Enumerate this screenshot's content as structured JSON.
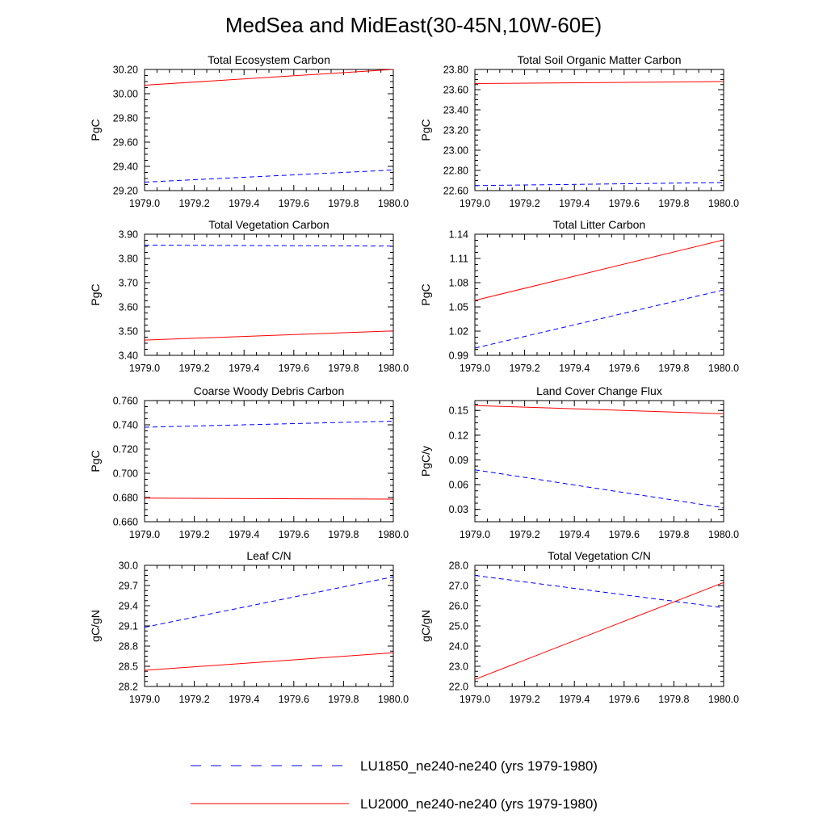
{
  "figure_title": "MedSea and MidEast(30-45N,10W-60E)",
  "colors": {
    "lu1850": "#0000ff",
    "lu2000": "#ff0000"
  },
  "legend": [
    {
      "label": "LU1850_ne240-ne240 (yrs 1979-1980)",
      "style": "dashed",
      "color": "#0000ff"
    },
    {
      "label": "LU2000_ne240-ne240 (yrs 1979-1980)",
      "style": "solid",
      "color": "#ff0000"
    }
  ],
  "chart_data": [
    {
      "type": "line",
      "title": "Total Ecosystem Carbon",
      "ylabel": "PgC",
      "xlim": [
        1979.0,
        1980.0
      ],
      "ylim": [
        29.2,
        30.2
      ],
      "xticks": [
        "1979.0",
        "1979.2",
        "1979.4",
        "1979.6",
        "1979.8",
        "1980.0"
      ],
      "yticks": [
        "29.20",
        "29.40",
        "29.60",
        "29.80",
        "30.00",
        "30.20"
      ],
      "series": [
        {
          "style": "dashed",
          "color": "#0000ff",
          "x": [
            1979.0,
            1980.0
          ],
          "y": [
            29.27,
            29.37
          ]
        },
        {
          "style": "solid",
          "color": "#ff0000",
          "x": [
            1979.0,
            1980.0
          ],
          "y": [
            30.07,
            30.2
          ]
        }
      ]
    },
    {
      "type": "line",
      "title": "Total Soil Organic Matter Carbon",
      "ylabel": "PgC",
      "xlim": [
        1979.0,
        1980.0
      ],
      "ylim": [
        22.6,
        23.8
      ],
      "xticks": [
        "1979.0",
        "1979.2",
        "1979.4",
        "1979.6",
        "1979.8",
        "1980.0"
      ],
      "yticks": [
        "22.60",
        "22.80",
        "23.00",
        "23.20",
        "23.40",
        "23.60",
        "23.80"
      ],
      "series": [
        {
          "style": "dashed",
          "color": "#0000ff",
          "x": [
            1979.0,
            1980.0
          ],
          "y": [
            22.65,
            22.68
          ]
        },
        {
          "style": "solid",
          "color": "#ff0000",
          "x": [
            1979.0,
            1980.0
          ],
          "y": [
            23.66,
            23.68
          ]
        }
      ]
    },
    {
      "type": "line",
      "title": "Total Vegetation Carbon",
      "ylabel": "PgC",
      "xlim": [
        1979.0,
        1980.0
      ],
      "ylim": [
        3.4,
        3.9
      ],
      "xticks": [
        "1979.0",
        "1979.2",
        "1979.4",
        "1979.6",
        "1979.8",
        "1980.0"
      ],
      "yticks": [
        "3.40",
        "3.50",
        "3.60",
        "3.70",
        "3.80",
        "3.90"
      ],
      "series": [
        {
          "style": "dashed",
          "color": "#0000ff",
          "x": [
            1979.0,
            1980.0
          ],
          "y": [
            3.855,
            3.851
          ]
        },
        {
          "style": "solid",
          "color": "#ff0000",
          "x": [
            1979.0,
            1980.0
          ],
          "y": [
            3.463,
            3.501
          ]
        }
      ]
    },
    {
      "type": "line",
      "title": "Total Litter Carbon",
      "ylabel": "PgC",
      "xlim": [
        1979.0,
        1980.0
      ],
      "ylim": [
        0.99,
        1.14
      ],
      "xticks": [
        "1979.0",
        "1979.2",
        "1979.4",
        "1979.6",
        "1979.8",
        "1980.0"
      ],
      "yticks": [
        "0.99",
        "1.02",
        "1.05",
        "1.08",
        "1.11",
        "1.14"
      ],
      "series": [
        {
          "style": "dashed",
          "color": "#0000ff",
          "x": [
            1979.0,
            1980.0
          ],
          "y": [
            0.999,
            1.071
          ]
        },
        {
          "style": "solid",
          "color": "#ff0000",
          "x": [
            1979.0,
            1980.0
          ],
          "y": [
            1.058,
            1.133
          ]
        }
      ]
    },
    {
      "type": "line",
      "title": "Coarse Woody Debris Carbon",
      "ylabel": "PgC",
      "xlim": [
        1979.0,
        1980.0
      ],
      "ylim": [
        0.66,
        0.76
      ],
      "xticks": [
        "1979.0",
        "1979.2",
        "1979.4",
        "1979.6",
        "1979.8",
        "1980.0"
      ],
      "yticks": [
        "0.660",
        "0.680",
        "0.700",
        "0.720",
        "0.740",
        "0.760"
      ],
      "series": [
        {
          "style": "dashed",
          "color": "#0000ff",
          "x": [
            1979.0,
            1980.0
          ],
          "y": [
            0.738,
            0.743
          ]
        },
        {
          "style": "solid",
          "color": "#ff0000",
          "x": [
            1979.0,
            1980.0
          ],
          "y": [
            0.6795,
            0.6787
          ]
        }
      ]
    },
    {
      "type": "line",
      "title": "Land Cover Change Flux",
      "ylabel": "PgC/y",
      "xlim": [
        1979.0,
        1980.0
      ],
      "ylim": [
        0.015,
        0.162
      ],
      "xticks": [
        "1979.0",
        "1979.2",
        "1979.4",
        "1979.6",
        "1979.8",
        "1980.0"
      ],
      "yticks": [
        "0.03",
        "0.06",
        "0.09",
        "0.12",
        "0.15"
      ],
      "ytick_values": [
        0.03,
        0.06,
        0.09,
        0.12,
        0.15
      ],
      "series": [
        {
          "style": "dashed",
          "color": "#0000ff",
          "x": [
            1979.0,
            1980.0
          ],
          "y": [
            0.078,
            0.032
          ]
        },
        {
          "style": "solid",
          "color": "#ff0000",
          "x": [
            1979.0,
            1980.0
          ],
          "y": [
            0.156,
            0.146
          ]
        }
      ]
    },
    {
      "type": "line",
      "title": "Leaf C/N",
      "ylabel": "gC/gN",
      "xlim": [
        1979.0,
        1980.0
      ],
      "ylim": [
        28.2,
        30.0
      ],
      "xticks": [
        "1979.0",
        "1979.2",
        "1979.4",
        "1979.6",
        "1979.8",
        "1980.0"
      ],
      "yticks": [
        "28.2",
        "28.5",
        "28.8",
        "29.1",
        "29.4",
        "29.7",
        "30.0"
      ],
      "series": [
        {
          "style": "dashed",
          "color": "#0000ff",
          "x": [
            1979.0,
            1980.0
          ],
          "y": [
            29.08,
            29.83
          ]
        },
        {
          "style": "solid",
          "color": "#ff0000",
          "x": [
            1979.0,
            1980.0
          ],
          "y": [
            28.44,
            28.7
          ]
        }
      ]
    },
    {
      "type": "line",
      "title": "Total Vegetation C/N",
      "ylabel": "gC/gN",
      "xlim": [
        1979.0,
        1980.0
      ],
      "ylim": [
        22.0,
        28.0
      ],
      "xticks": [
        "1979.0",
        "1979.2",
        "1979.4",
        "1979.6",
        "1979.8",
        "1980.0"
      ],
      "yticks": [
        "22.0",
        "23.0",
        "24.0",
        "25.0",
        "26.0",
        "27.0",
        "28.0"
      ],
      "series": [
        {
          "style": "dashed",
          "color": "#0000ff",
          "x": [
            1979.0,
            1980.0
          ],
          "y": [
            27.5,
            25.9
          ]
        },
        {
          "style": "solid",
          "color": "#ff0000",
          "x": [
            1979.0,
            1980.0
          ],
          "y": [
            22.35,
            27.15
          ]
        }
      ]
    }
  ]
}
